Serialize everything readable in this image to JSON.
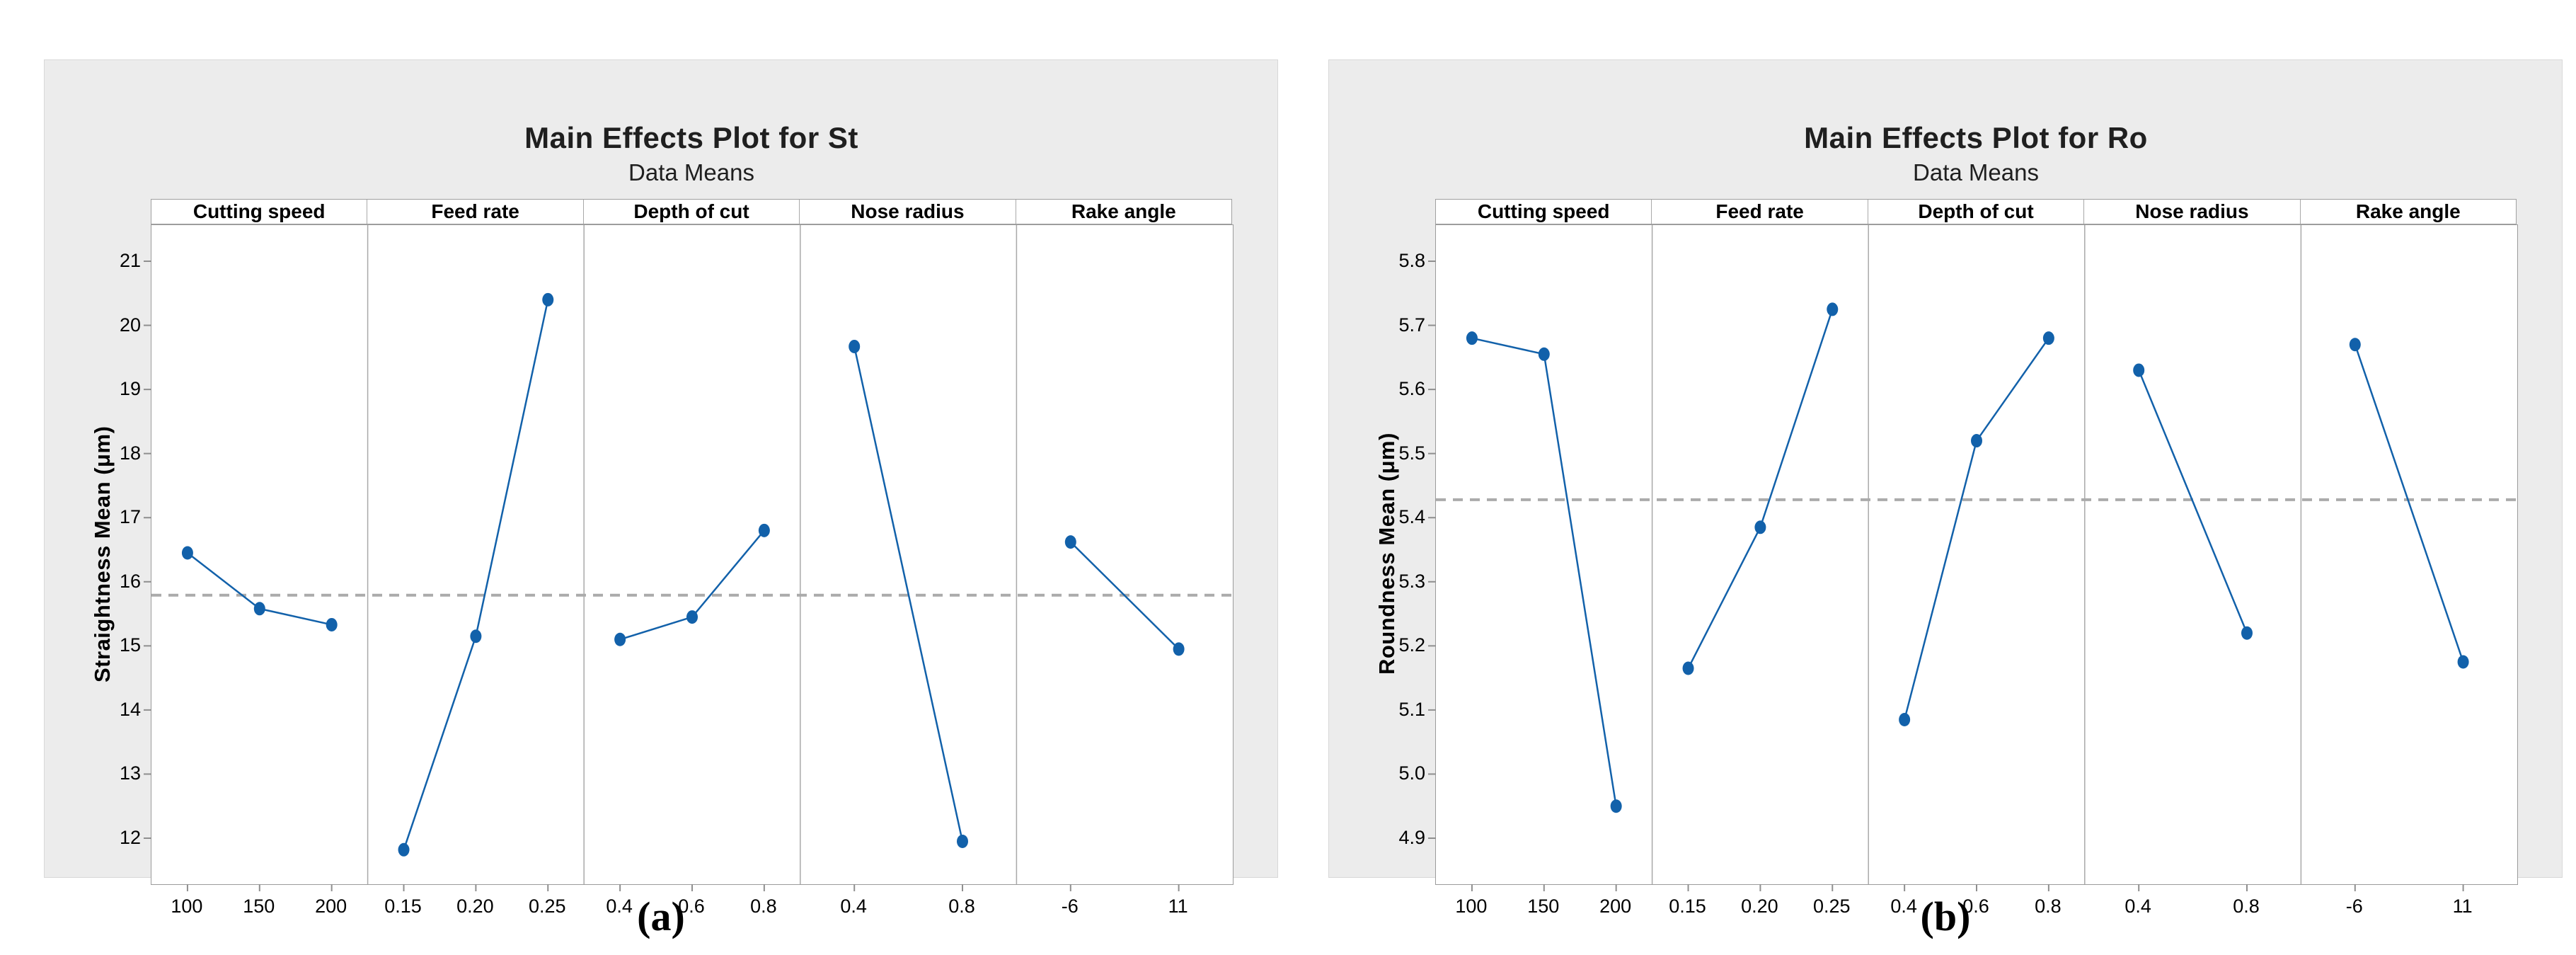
{
  "colors": {
    "series_blue": "#1261aa",
    "mean_line_gray": "#ababab",
    "panel_border": "#a9a9a9",
    "outer_border": "#9b9b9b",
    "tick_mark": "#8f8f8f",
    "card_bg": "#ececec"
  },
  "captions": {
    "left": "(a)",
    "right": "(b)"
  },
  "chart_data": [
    {
      "type": "line",
      "title": "Main Effects Plot for St",
      "subtitle": "Data Means",
      "ylabel": "Straightness Mean (μm)",
      "caption": "(a)",
      "legend_position": "none",
      "grid": false,
      "y_ticks": [
        "21",
        "20",
        "19",
        "18",
        "17",
        "16",
        "15",
        "14",
        "13",
        "12"
      ],
      "y_tick_values": [
        21,
        20,
        19,
        18,
        17,
        16,
        15,
        14,
        13,
        12
      ],
      "ylim": [
        11.25,
        21.53
      ],
      "grand_mean": 15.79,
      "panels": [
        {
          "label": "Cutting speed",
          "categories": [
            "100",
            "150",
            "200"
          ],
          "values": [
            16.45,
            15.58,
            15.33
          ]
        },
        {
          "label": "Feed rate",
          "categories": [
            "0.15",
            "0.20",
            "0.25"
          ],
          "values": [
            11.82,
            15.15,
            20.4
          ]
        },
        {
          "label": "Depth of cut",
          "categories": [
            "0.4",
            "0.6",
            "0.8"
          ],
          "values": [
            15.1,
            15.45,
            16.8
          ]
        },
        {
          "label": "Nose radius",
          "categories": [
            "0.4",
            "0.8"
          ],
          "values": [
            19.67,
            11.95
          ]
        },
        {
          "label": "Rake angle",
          "categories": [
            "-6",
            "11"
          ],
          "values": [
            16.62,
            14.95
          ]
        }
      ]
    },
    {
      "type": "line",
      "title": "Main Effects Plot for Ro",
      "subtitle": "Data Means",
      "ylabel": "Roundness Mean (μm)",
      "caption": "(b)",
      "legend_position": "none",
      "grid": false,
      "y_ticks": [
        "5.8",
        "5.7",
        "5.6",
        "5.5",
        "5.4",
        "5.3",
        "5.2",
        "5.1",
        "5.0",
        "4.9"
      ],
      "y_tick_values": [
        5.8,
        5.7,
        5.6,
        5.5,
        5.4,
        5.3,
        5.2,
        5.1,
        5.0,
        4.9
      ],
      "ylim": [
        4.83,
        5.861
      ],
      "grand_mean": 5.428,
      "panels": [
        {
          "label": "Cutting speed",
          "categories": [
            "100",
            "150",
            "200"
          ],
          "values": [
            5.68,
            5.655,
            4.95
          ]
        },
        {
          "label": "Feed rate",
          "categories": [
            "0.15",
            "0.20",
            "0.25"
          ],
          "values": [
            5.165,
            5.385,
            5.725
          ]
        },
        {
          "label": "Depth of cut",
          "categories": [
            "0.4",
            "0.6",
            "0.8"
          ],
          "values": [
            5.085,
            5.52,
            5.68
          ]
        },
        {
          "label": "Nose radius",
          "categories": [
            "0.4",
            "0.8"
          ],
          "values": [
            5.63,
            5.22
          ]
        },
        {
          "label": "Rake angle",
          "categories": [
            "-6",
            "11"
          ],
          "values": [
            5.67,
            5.175
          ]
        }
      ]
    }
  ]
}
